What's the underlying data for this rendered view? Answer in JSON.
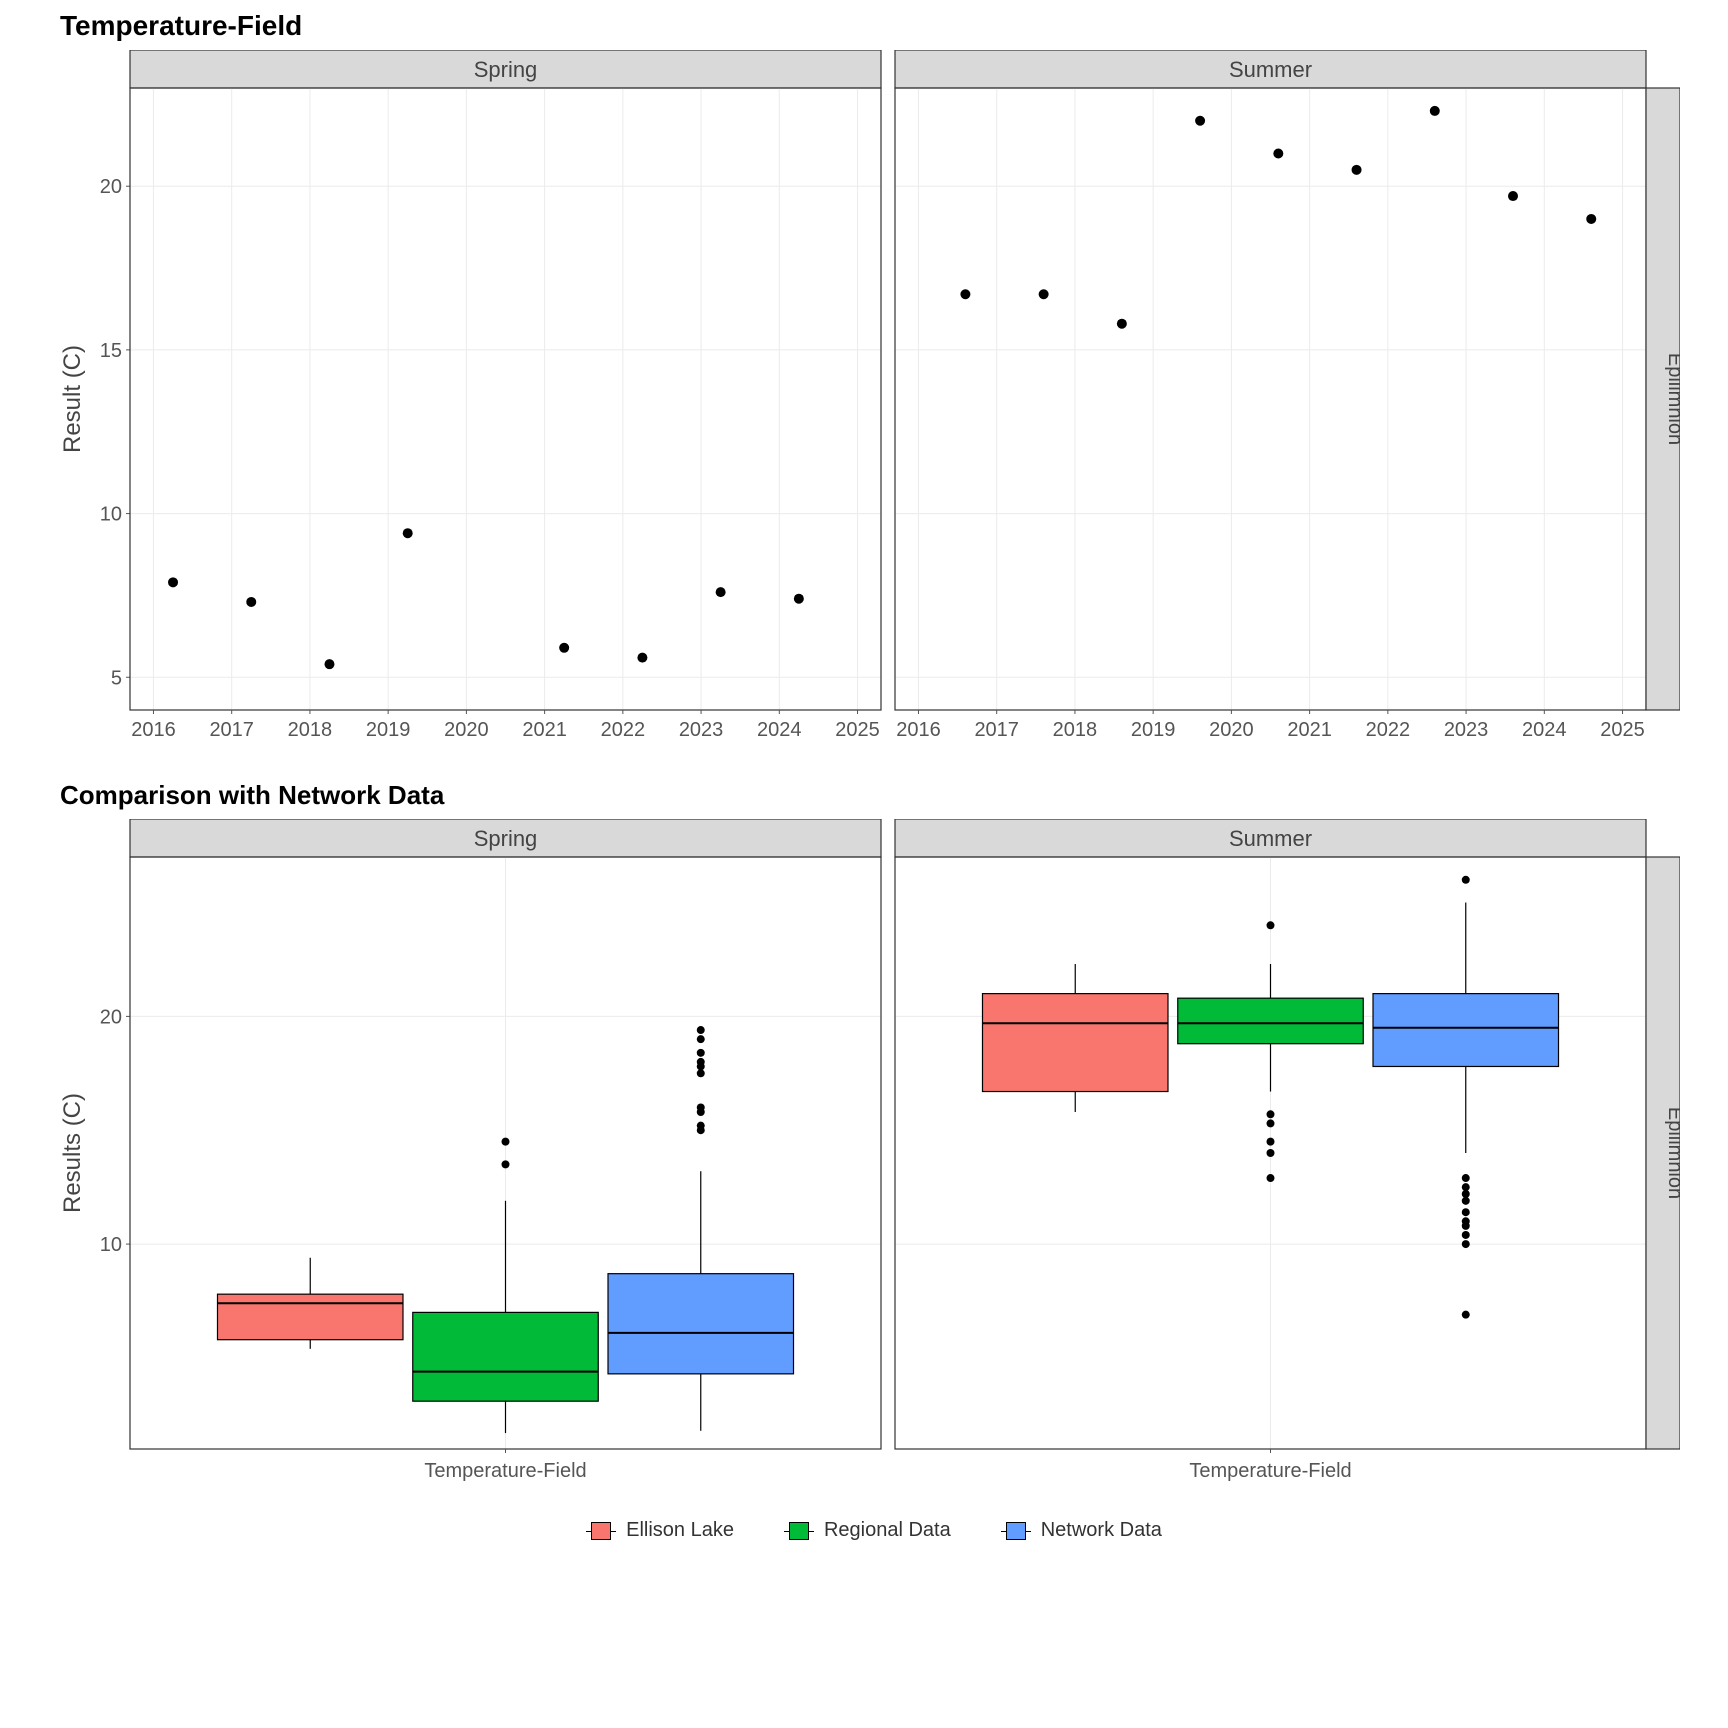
{
  "colors": {
    "ellison": "#f8766d",
    "regional": "#00ba38",
    "network": "#619cff",
    "grid": "#ebebeb",
    "panel_border": "#333333",
    "strip_bg": "#d9d9d9",
    "text": "#444444",
    "tick": "#555555",
    "point": "#000000"
  },
  "typography": {
    "title_fontsize": 28,
    "axis_title_fontsize": 24,
    "tick_fontsize": 20,
    "strip_fontsize": 22,
    "legend_fontsize": 20
  },
  "chart1": {
    "title": "Temperature-Field",
    "ylabel": "Result (C)",
    "facet_row_label": "Epilimnion",
    "ylim": [
      4,
      23
    ],
    "ytick_step": 5,
    "yticks": [
      5,
      10,
      15,
      20
    ],
    "xlim": [
      2015.7,
      2025.3
    ],
    "panels": [
      {
        "label": "Spring",
        "xticks": [
          2016,
          2017,
          2018,
          2019,
          2020,
          2021,
          2022,
          2023,
          2024,
          2025
        ],
        "points": [
          {
            "x": 2016.25,
            "y": 7.9
          },
          {
            "x": 2017.25,
            "y": 7.3
          },
          {
            "x": 2018.25,
            "y": 5.4
          },
          {
            "x": 2019.25,
            "y": 9.4
          },
          {
            "x": 2021.25,
            "y": 5.9
          },
          {
            "x": 2022.25,
            "y": 5.6
          },
          {
            "x": 2023.25,
            "y": 7.6
          },
          {
            "x": 2024.25,
            "y": 7.4
          }
        ]
      },
      {
        "label": "Summer",
        "xticks": [
          2016,
          2017,
          2018,
          2019,
          2020,
          2021,
          2022,
          2023,
          2024,
          2025
        ],
        "points": [
          {
            "x": 2016.6,
            "y": 16.7
          },
          {
            "x": 2017.6,
            "y": 16.7
          },
          {
            "x": 2018.6,
            "y": 15.8
          },
          {
            "x": 2019.6,
            "y": 22.0
          },
          {
            "x": 2020.6,
            "y": 21.0
          },
          {
            "x": 2021.6,
            "y": 20.5
          },
          {
            "x": 2022.6,
            "y": 22.3
          },
          {
            "x": 2023.6,
            "y": 19.7
          },
          {
            "x": 2024.6,
            "y": 19.0
          }
        ]
      }
    ]
  },
  "chart2": {
    "title": "Comparison with Network Data",
    "ylabel": "Results (C)",
    "facet_row_label": "Epilimnion",
    "xlabel": "Temperature-Field",
    "ylim": [
      1,
      27
    ],
    "yticks": [
      10,
      20
    ],
    "panels": [
      {
        "label": "Spring",
        "boxes": [
          {
            "colorKey": "ellison",
            "low": 5.4,
            "q1": 5.8,
            "med": 7.4,
            "q3": 7.8,
            "high": 9.4,
            "outliers": []
          },
          {
            "colorKey": "regional",
            "low": 1.7,
            "q1": 3.1,
            "med": 4.4,
            "q3": 7.0,
            "high": 11.9,
            "outliers": [
              13.5,
              14.5
            ]
          },
          {
            "colorKey": "network",
            "low": 1.8,
            "q1": 4.3,
            "med": 6.1,
            "q3": 8.7,
            "high": 13.2,
            "outliers": [
              15.0,
              15.2,
              15.8,
              16.0,
              17.5,
              17.8,
              18.0,
              18.4,
              19.0,
              19.4
            ]
          }
        ]
      },
      {
        "label": "Summer",
        "boxes": [
          {
            "colorKey": "ellison",
            "low": 15.8,
            "q1": 16.7,
            "med": 19.7,
            "q3": 21.0,
            "high": 22.3,
            "outliers": []
          },
          {
            "colorKey": "regional",
            "low": 16.7,
            "q1": 18.8,
            "med": 19.7,
            "q3": 20.8,
            "high": 22.3,
            "outliers": [
              12.9,
              14.0,
              14.5,
              15.3,
              15.7,
              24.0
            ]
          },
          {
            "colorKey": "network",
            "low": 14.0,
            "q1": 17.8,
            "med": 19.5,
            "q3": 21.0,
            "high": 25.0,
            "outliers": [
              6.9,
              10.0,
              10.4,
              10.8,
              11.0,
              11.4,
              11.9,
              12.2,
              12.5,
              12.9,
              26.0
            ]
          }
        ]
      }
    ]
  },
  "legend": {
    "items": [
      {
        "label": "Ellison Lake",
        "colorKey": "ellison"
      },
      {
        "label": "Regional Data",
        "colorKey": "regional"
      },
      {
        "label": "Network Data",
        "colorKey": "network"
      }
    ]
  }
}
